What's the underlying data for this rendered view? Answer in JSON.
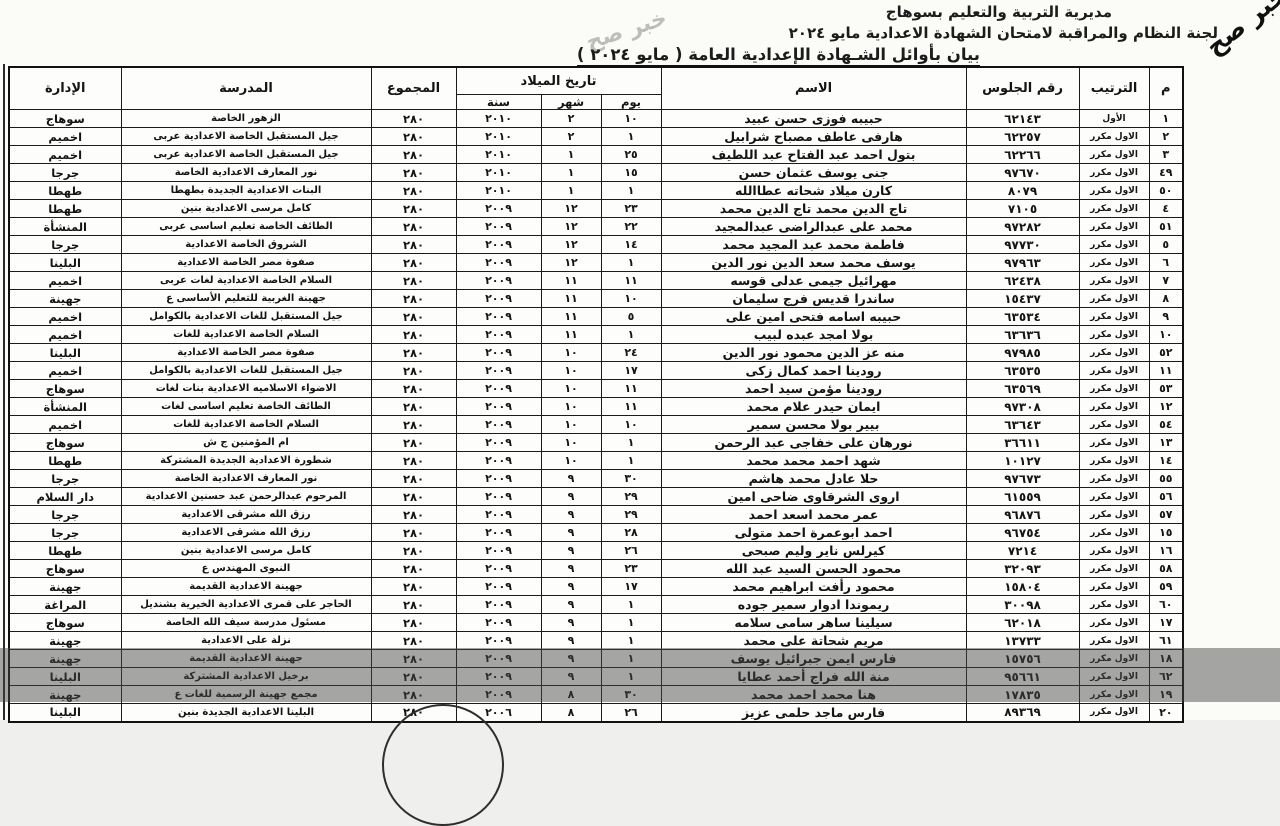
{
  "page": {
    "watermark": "خبر صح",
    "header_line1": "مديرية التربية والتعليم بسوهاج",
    "header_line2": "لجنة النظام والمراقبة لامتحان الشهادة الاعدادية مايو ٢٠٢٤",
    "title": "بيان بأوائل الشـهادة الإعدادية العامة ( مايو ٢٠٢٤ )"
  },
  "table": {
    "headers": {
      "serial": "م",
      "rank": "الترتيب",
      "seat": "رقم الجلوس",
      "name": "الاسم",
      "birth_date": "تاريخ الميلاد",
      "day": "يوم",
      "month": "شهر",
      "year": "سنة",
      "total": "المجموع",
      "school": "المدرسة",
      "district": "الإدارة"
    },
    "column_order": [
      "serial",
      "rank",
      "seat",
      "name",
      "day",
      "month",
      "year",
      "total",
      "school",
      "district"
    ],
    "rows": [
      {
        "serial": "١",
        "rank": "الأول",
        "seat": "٦٢١٤٣",
        "name": "حبيبه فوزى حسن عبيد",
        "day": "١٠",
        "month": "٢",
        "year": "٢٠١٠",
        "total": "٢٨٠",
        "school": "الزهور الخاصة",
        "district": "سوهاج"
      },
      {
        "serial": "٢",
        "rank": "الاول مكرر",
        "seat": "٦٢٢٥٧",
        "name": "هارفى عاطف مصباح شرابيل",
        "day": "١",
        "month": "٢",
        "year": "٢٠١٠",
        "total": "٢٨٠",
        "school": "جيل المستقبل الخاصة الاعدادية عربى",
        "district": "اخميم"
      },
      {
        "serial": "٣",
        "rank": "الاول مكرر",
        "seat": "٦٢٢٦٦",
        "name": "بتول احمد عبد الفتاح عبد اللطيف",
        "day": "٢٥",
        "month": "١",
        "year": "٢٠١٠",
        "total": "٢٨٠",
        "school": "جيل المستقبل الخاصة الاعدادية عربى",
        "district": "اخميم"
      },
      {
        "serial": "٤٩",
        "rank": "الاول مكرر",
        "seat": "٩٧٦٧٠",
        "name": "جنى يوسف عثمان حسن",
        "day": "١٥",
        "month": "١",
        "year": "٢٠١٠",
        "total": "٢٨٠",
        "school": "نور المعارف الاعدادية الخاصة",
        "district": "جرجا"
      },
      {
        "serial": "٥٠",
        "rank": "الاول مكرر",
        "seat": "٨٠٧٩",
        "name": "كارن ميلاد شحاته عطاالله",
        "day": "١",
        "month": "١",
        "year": "٢٠١٠",
        "total": "٢٨٠",
        "school": "البنات الاعدادية الجديدة بطهطا",
        "district": "طهطا"
      },
      {
        "serial": "٤",
        "rank": "الاول مكرر",
        "seat": "٧١٠٥",
        "name": "تاج الدين محمد تاج الدين محمد",
        "day": "٢٣",
        "month": "١٢",
        "year": "٢٠٠٩",
        "total": "٢٨٠",
        "school": "كامل مرسى الاعدادية بنين",
        "district": "طهطا"
      },
      {
        "serial": "٥١",
        "rank": "الاول مكرر",
        "seat": "٩٧٢٨٢",
        "name": "محمد على عبدالراضى عبدالمجيد",
        "day": "٢٢",
        "month": "١٢",
        "year": "٢٠٠٩",
        "total": "٢٨٠",
        "school": "الطائف الخاصة تعليم اساسى عربى",
        "district": "المنشأة"
      },
      {
        "serial": "٥",
        "rank": "الاول مكرر",
        "seat": "٩٧٧٣٠",
        "name": "فاطمة محمد عبد المجيد محمد",
        "day": "١٤",
        "month": "١٢",
        "year": "٢٠٠٩",
        "total": "٢٨٠",
        "school": "الشروق الخاصة الاعدادية",
        "district": "جرجا"
      },
      {
        "serial": "٦",
        "rank": "الاول مكرر",
        "seat": "٩٧٩٦٣",
        "name": "يوسف محمد سعد الدين نور الدين",
        "day": "١",
        "month": "١٢",
        "year": "٢٠٠٩",
        "total": "٢٨٠",
        "school": "صفوة مصر الخاصة الاعدادية",
        "district": "البلينا"
      },
      {
        "serial": "٧",
        "rank": "الاول مكرر",
        "seat": "٦٢٤٣٨",
        "name": "مهرائيل جيمى عدلى قوسه",
        "day": "١١",
        "month": "١١",
        "year": "٢٠٠٩",
        "total": "٢٨٠",
        "school": "السلام الخاصة الاعدادية لغات عربى",
        "district": "اخميم"
      },
      {
        "serial": "٨",
        "rank": "الاول مكرر",
        "seat": "١٥٤٣٧",
        "name": "ساندرا قديس فرج سليمان",
        "day": "١٠",
        "month": "١١",
        "year": "٢٠٠٩",
        "total": "٢٨٠",
        "school": "جهينة الغربية للتعليم الأساسى ع",
        "district": "جهينة"
      },
      {
        "serial": "٩",
        "rank": "الاول مكرر",
        "seat": "٦٣٥٣٤",
        "name": "حبيبه اسامه فتحى امين على",
        "day": "٥",
        "month": "١١",
        "year": "٢٠٠٩",
        "total": "٢٨٠",
        "school": "جيل المستقبل للغات الاعدادية بالكوامل",
        "district": "اخميم"
      },
      {
        "serial": "١٠",
        "rank": "الاول مكرر",
        "seat": "٦٣٦٣٦",
        "name": "بولا امجد عبده لبيب",
        "day": "١",
        "month": "١١",
        "year": "٢٠٠٩",
        "total": "٢٨٠",
        "school": "السلام الخاصة الاعدادية للغات",
        "district": "اخميم"
      },
      {
        "serial": "٥٢",
        "rank": "الاول مكرر",
        "seat": "٩٧٩٨٥",
        "name": "منه عز الدين محمود نور الدين",
        "day": "٢٤",
        "month": "١٠",
        "year": "٢٠٠٩",
        "total": "٢٨٠",
        "school": "صفوة مصر الخاصة الاعدادية",
        "district": "البلينا"
      },
      {
        "serial": "١١",
        "rank": "الاول مكرر",
        "seat": "٦٣٥٣٥",
        "name": "رودينا احمد كمال زكى",
        "day": "١٧",
        "month": "١٠",
        "year": "٢٠٠٩",
        "total": "٢٨٠",
        "school": "جيل المستقبل للغات الاعدادية بالكوامل",
        "district": "اخميم"
      },
      {
        "serial": "٥٣",
        "rank": "الاول مكرر",
        "seat": "٦٣٥٦٩",
        "name": "رودينا مؤمن سيد احمد",
        "day": "١١",
        "month": "١٠",
        "year": "٢٠٠٩",
        "total": "٢٨٠",
        "school": "الاضواء الاسلاميه الاعدادية بنات لغات",
        "district": "سوهاج"
      },
      {
        "serial": "١٢",
        "rank": "الاول مكرر",
        "seat": "٩٧٣٠٨",
        "name": "ايمان حيدر علام محمد",
        "day": "١١",
        "month": "١٠",
        "year": "٢٠٠٩",
        "total": "٢٨٠",
        "school": "الطائف الخاصة تعليم اساسى لغات",
        "district": "المنشأة"
      },
      {
        "serial": "٥٤",
        "rank": "الاول مكرر",
        "seat": "٦٣٦٤٣",
        "name": "بيير بولا محسن سمير",
        "day": "١٠",
        "month": "١٠",
        "year": "٢٠٠٩",
        "total": "٢٨٠",
        "school": "السلام الخاصة الاعدادية للغات",
        "district": "اخميم"
      },
      {
        "serial": "١٣",
        "rank": "الاول مكرر",
        "seat": "٣٦٦١١",
        "name": "نورهان على خفاجى عبد الرحمن",
        "day": "١",
        "month": "١٠",
        "year": "٢٠٠٩",
        "total": "٢٨٠",
        "school": "ام المؤمنين ج ش",
        "district": "سوهاج"
      },
      {
        "serial": "١٤",
        "rank": "الاول مكرر",
        "seat": "١٠١٢٧",
        "name": "شهد احمد محمد محمد",
        "day": "١",
        "month": "١٠",
        "year": "٢٠٠٩",
        "total": "٢٨٠",
        "school": "شطورة الاعدادية الجديدة المشتركة",
        "district": "طهطا"
      },
      {
        "serial": "٥٥",
        "rank": "الاول مكرر",
        "seat": "٩٧٦٧٣",
        "name": "حلا عادل محمد هاشم",
        "day": "٣٠",
        "month": "٩",
        "year": "٢٠٠٩",
        "total": "٢٨٠",
        "school": "نور المعارف الاعدادية الخاصة",
        "district": "جرجا"
      },
      {
        "serial": "٥٦",
        "rank": "الاول مكرر",
        "seat": "٦١٥٥٩",
        "name": "اروى الشرقاوى ضاحى امين",
        "day": "٢٩",
        "month": "٩",
        "year": "٢٠٠٩",
        "total": "٢٨٠",
        "school": "المرحوم عبدالرحمن عبد حسنين الاعدادية",
        "district": "دار السلام"
      },
      {
        "serial": "٥٧",
        "rank": "الاول مكرر",
        "seat": "٩٦٨٧٦",
        "name": "عمر محمد اسعد احمد",
        "day": "٢٩",
        "month": "٩",
        "year": "٢٠٠٩",
        "total": "٢٨٠",
        "school": "رزق الله مشرقى الاعدادية",
        "district": "جرجا"
      },
      {
        "serial": "١٥",
        "rank": "الاول مكرر",
        "seat": "٩٦٧٥٤",
        "name": "احمد ابوعمرة احمد متولى",
        "day": "٢٨",
        "month": "٩",
        "year": "٢٠٠٩",
        "total": "٢٨٠",
        "school": "رزق الله مشرقى الاعدادية",
        "district": "جرجا"
      },
      {
        "serial": "١٦",
        "rank": "الاول مكرر",
        "seat": "٧٢١٤",
        "name": "كيرلس ناير وليم صبحى",
        "day": "٢٦",
        "month": "٩",
        "year": "٢٠٠٩",
        "total": "٢٨٠",
        "school": "كامل مرسى الاعدادية بنين",
        "district": "طهطا"
      },
      {
        "serial": "٥٨",
        "rank": "الاول مكرر",
        "seat": "٣٢٠٩٣",
        "name": "محمود الحسن السيد عبد الله",
        "day": "٢٣",
        "month": "٩",
        "year": "٢٠٠٩",
        "total": "٢٨٠",
        "school": "النبوى المهندس ع",
        "district": "سوهاج"
      },
      {
        "serial": "٥٩",
        "rank": "الاول مكرر",
        "seat": "١٥٨٠٤",
        "name": "محمود رأفت ابراهيم محمد",
        "day": "١٧",
        "month": "٩",
        "year": "٢٠٠٩",
        "total": "٢٨٠",
        "school": "جهينة الاعدادية القديمة",
        "district": "جهينة"
      },
      {
        "serial": "٦٠",
        "rank": "الاول مكرر",
        "seat": "٣٠٠٩٨",
        "name": "ريموندا ادوار سمير جوده",
        "day": "١",
        "month": "٩",
        "year": "٢٠٠٩",
        "total": "٢٨٠",
        "school": "الحاجر على قمرى الاعدادية الخيرية بشنديل",
        "district": "المراغة"
      },
      {
        "serial": "١٧",
        "rank": "الاول مكرر",
        "seat": "٦٢٠١٨",
        "name": "سيلينا ساهر سامى سلامه",
        "day": "١",
        "month": "٩",
        "year": "٢٠٠٩",
        "total": "٢٨٠",
        "school": "مسئول مدرسة سيف الله الخاصة",
        "district": "سوهاج"
      },
      {
        "serial": "٦١",
        "rank": "الاول مكرر",
        "seat": "١٣٧٣٣",
        "name": "مريم شحاتة على محمد",
        "day": "١",
        "month": "٩",
        "year": "٢٠٠٩",
        "total": "٢٨٠",
        "school": "نزلة على الاعدادية",
        "district": "جهينة"
      },
      {
        "serial": "١٨",
        "rank": "الاول مكرر",
        "seat": "١٥٧٥٦",
        "name": "فارس ايمن جبرائيل يوسف",
        "day": "١",
        "month": "٩",
        "year": "٢٠٠٩",
        "total": "٢٨٠",
        "school": "جهينة الاعدادية القديمة",
        "district": "جهينة"
      },
      {
        "serial": "٦٢",
        "rank": "الاول مكرر",
        "seat": "٩٥٦٦١",
        "name": "منة الله فراج أحمد عطايا",
        "day": "١",
        "month": "٩",
        "year": "٢٠٠٩",
        "total": "٢٨٠",
        "school": "برخيل الاعدادية المشتركة",
        "district": "البلينا"
      },
      {
        "serial": "١٩",
        "rank": "الاول مكرر",
        "seat": "١٧٨٣٥",
        "name": "هنا محمد احمد محمد",
        "day": "٣٠",
        "month": "٨",
        "year": "٢٠٠٩",
        "total": "٢٨٠",
        "school": "مجمع جهينة الرسمية للغات ع",
        "district": "جهينة"
      },
      {
        "serial": "٢٠",
        "rank": "الاول مكرر",
        "seat": "٨٩٣٦٩",
        "name": "فارس ماجد حلمى عزيز",
        "day": "٢٦",
        "month": "٨",
        "year": "٢٠٠٦",
        "total": "٢٨٠",
        "school": "البلينا الاعدادية الجديدة بنين",
        "district": "البلينا"
      }
    ]
  }
}
